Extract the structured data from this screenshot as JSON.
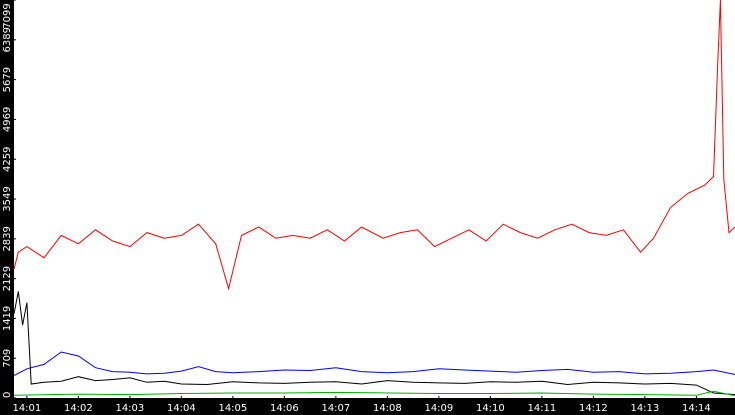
{
  "chart_data": {
    "type": "line",
    "title": "",
    "xlabel": "",
    "ylabel": "",
    "x_range": [
      "14:00:45",
      "14:14:45"
    ],
    "ylim": [
      0,
      7099
    ],
    "y_ticks": [
      "0",
      "709",
      "1419",
      "2129",
      "2839",
      "3549",
      "4259",
      "4969",
      "5679",
      "6389",
      "7099"
    ],
    "x_ticks": [
      "14:01",
      "14:02",
      "14:03",
      "14:04",
      "14:05",
      "14:06",
      "14:07",
      "14:08",
      "14:09",
      "14:10",
      "14:11",
      "14:12",
      "14:13",
      "14:14"
    ],
    "grid": false,
    "legend": "none",
    "axis_background": "#000000",
    "series": [
      {
        "color": "#ff0000",
        "x": [
          "14:00:45",
          "14:00:50",
          "14:01:00",
          "14:01:20",
          "14:01:40",
          "14:02:00",
          "14:02:20",
          "14:02:40",
          "14:03:00",
          "14:03:20",
          "14:03:40",
          "14:04:00",
          "14:04:20",
          "14:04:40",
          "14:04:55",
          "14:05:10",
          "14:05:30",
          "14:05:50",
          "14:06:10",
          "14:06:30",
          "14:06:50",
          "14:07:10",
          "14:07:30",
          "14:07:55",
          "14:08:15",
          "14:08:35",
          "14:08:55",
          "14:09:15",
          "14:09:35",
          "14:09:55",
          "14:10:15",
          "14:10:35",
          "14:10:55",
          "14:11:15",
          "14:11:35",
          "14:11:55",
          "14:12:15",
          "14:12:35",
          "14:12:55",
          "14:13:10",
          "14:13:30",
          "14:13:50",
          "14:14:10",
          "14:14:20",
          "14:14:25",
          "14:14:28",
          "14:14:32",
          "14:14:38",
          "14:14:45"
        ],
        "values": [
          2300,
          2600,
          2700,
          2500,
          2900,
          2750,
          3000,
          2800,
          2700,
          2950,
          2850,
          2900,
          3100,
          2750,
          1950,
          2900,
          3050,
          2850,
          2900,
          2850,
          3000,
          2800,
          3050,
          2850,
          2950,
          3000,
          2700,
          2850,
          3000,
          2800,
          3100,
          2950,
          2850,
          3000,
          3100,
          2950,
          2900,
          3000,
          2600,
          2850,
          3400,
          3650,
          3800,
          3950,
          6000,
          7099,
          3900,
          2950,
          3050
        ]
      },
      {
        "color": "#0000ff",
        "x": [
          "14:00:45",
          "14:01:00",
          "14:01:20",
          "14:01:40",
          "14:02:00",
          "14:02:20",
          "14:02:40",
          "14:03:00",
          "14:03:20",
          "14:03:40",
          "14:04:00",
          "14:04:20",
          "14:04:40",
          "14:05:00",
          "14:05:30",
          "14:06:00",
          "14:06:30",
          "14:07:00",
          "14:07:30",
          "14:08:00",
          "14:08:30",
          "14:09:00",
          "14:09:30",
          "14:10:00",
          "14:10:30",
          "14:11:00",
          "14:11:30",
          "14:12:00",
          "14:12:30",
          "14:13:00",
          "14:13:30",
          "14:14:00",
          "14:14:20",
          "14:14:45"
        ],
        "values": [
          400,
          520,
          600,
          820,
          750,
          540,
          470,
          460,
          430,
          440,
          480,
          560,
          470,
          450,
          470,
          500,
          490,
          540,
          470,
          450,
          470,
          520,
          500,
          480,
          460,
          490,
          510,
          460,
          470,
          430,
          440,
          470,
          500,
          420
        ]
      },
      {
        "color": "#000000",
        "x": [
          "14:00:45",
          "14:00:50",
          "14:00:55",
          "14:01:00",
          "14:01:05",
          "14:01:20",
          "14:01:40",
          "14:02:00",
          "14:02:20",
          "14:02:40",
          "14:03:00",
          "14:03:20",
          "14:03:40",
          "14:04:00",
          "14:04:30",
          "14:05:00",
          "14:05:30",
          "14:06:00",
          "14:06:30",
          "14:07:00",
          "14:07:30",
          "14:08:00",
          "14:08:30",
          "14:09:00",
          "14:09:30",
          "14:10:00",
          "14:10:30",
          "14:11:00",
          "14:11:30",
          "14:12:00",
          "14:12:30",
          "14:13:00",
          "14:13:30",
          "14:14:00",
          "14:14:20",
          "14:14:45"
        ],
        "values": [
          1500,
          1900,
          1300,
          1700,
          250,
          280,
          300,
          380,
          310,
          330,
          360,
          280,
          300,
          250,
          240,
          290,
          270,
          260,
          280,
          290,
          250,
          310,
          280,
          270,
          260,
          290,
          280,
          300,
          240,
          280,
          270,
          250,
          260,
          230,
          90,
          60
        ]
      },
      {
        "color": "#00b000",
        "x": [
          "14:00:45",
          "14:02:00",
          "14:03:00",
          "14:04:00",
          "14:05:00",
          "14:06:00",
          "14:07:00",
          "14:08:00",
          "14:09:00",
          "14:10:00",
          "14:11:00",
          "14:12:00",
          "14:13:00",
          "14:14:00",
          "14:14:20",
          "14:14:45"
        ],
        "values": [
          50,
          70,
          60,
          80,
          90,
          90,
          100,
          90,
          80,
          80,
          90,
          70,
          60,
          50,
          120,
          40
        ]
      }
    ]
  }
}
